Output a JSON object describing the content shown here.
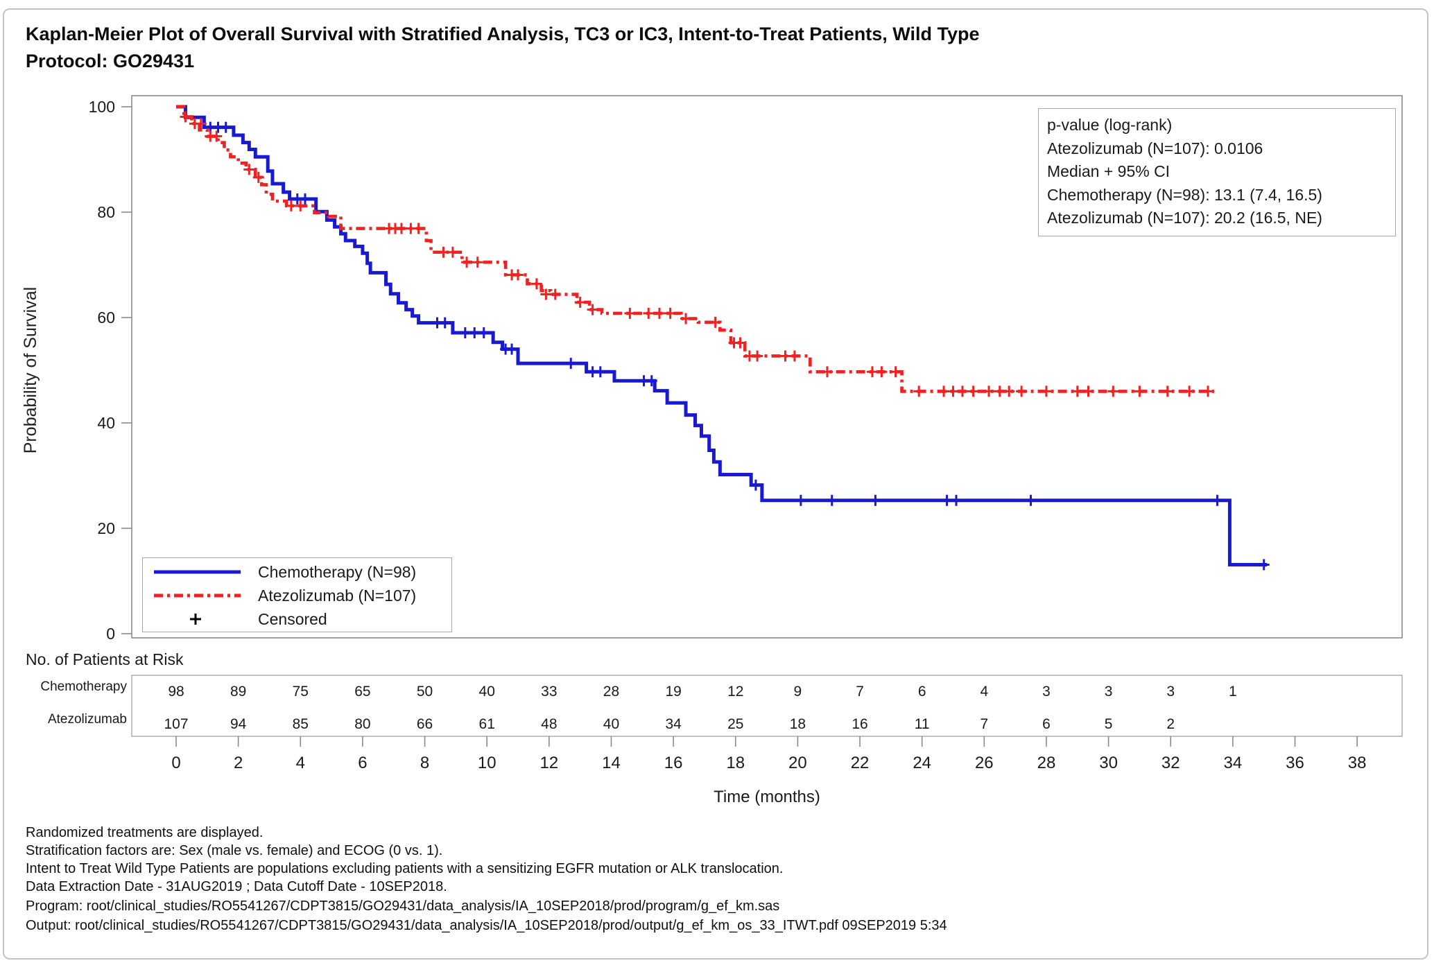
{
  "page": {
    "title_line1": "Kaplan-Meier Plot of Overall Survival with Stratified Analysis, TC3 or IC3, Intent-to-Treat Patients, Wild Type",
    "title_line2": "Protocol: GO29431"
  },
  "stats_box": {
    "l1": "p-value (log-rank)",
    "l2": "Atezolizumab (N=107): 0.0106",
    "l3": "Median + 95% CI",
    "l4": "Chemotherapy (N=98): 13.1 (7.4, 16.5)",
    "l5": "Atezolizumab (N=107): 20.2 (16.5, NE)"
  },
  "legend": {
    "items": [
      {
        "label": "Chemotherapy (N=98)",
        "sample": "solid-blue-line"
      },
      {
        "label": "Atezolizumab (N=107)",
        "sample": "dash-dot-red-line"
      },
      {
        "label": "Censored",
        "sample": "plus-mark",
        "symbol": "+"
      }
    ]
  },
  "at_risk": {
    "heading": "No. of Patients at Risk",
    "rows": [
      {
        "label": "Chemotherapy",
        "times": [
          0,
          2,
          4,
          6,
          8,
          10,
          12,
          14,
          16,
          18,
          20,
          22,
          24,
          26,
          28,
          30,
          32,
          34
        ],
        "counts": [
          98,
          89,
          75,
          65,
          50,
          40,
          33,
          28,
          19,
          12,
          9,
          7,
          6,
          4,
          3,
          3,
          3,
          1
        ]
      },
      {
        "label": "Atezolizumab",
        "times": [
          0,
          2,
          4,
          6,
          8,
          10,
          12,
          14,
          16,
          18,
          20,
          22,
          24,
          26,
          28,
          30,
          32
        ],
        "counts": [
          107,
          94,
          85,
          80,
          66,
          61,
          48,
          40,
          34,
          25,
          18,
          16,
          11,
          7,
          6,
          5,
          2
        ]
      }
    ]
  },
  "footnotes": {
    "l1": "Randomized treatments are displayed.",
    "l2": "Stratification factors are: Sex (male vs. female) and ECOG (0 vs. 1).",
    "l3": "Intent to Treat Wild Type Patients are populations excluding patients with a sensitizing EGFR mutation or ALK translocation.",
    "l4": "Data Extraction Date - 31AUG2019 ; Data Cutoff Date - 10SEP2018.",
    "l5": "Program: root/clinical_studies/RO5541267/CDPT3815/GO29431/data_analysis/IA_10SEP2018/prod/program/g_ef_km.sas",
    "l6": "Output: root/clinical_studies/RO5541267/CDPT3815/GO29431/data_analysis/IA_10SEP2018/prod/output/g_ef_km_os_33_ITWT.pdf 09SEP2019 5:34"
  },
  "colors": {
    "chemotherapy": "#1919d2",
    "atezolizumab": "#ee2222",
    "censored_legend": "#000000",
    "axis": "#8a8a8a",
    "box_border": "#a9a9a9",
    "text": "#1a1a1a"
  },
  "chart_data": {
    "type": "line",
    "variant": "kaplan-meier-step",
    "title": "Kaplan-Meier Plot of Overall Survival, TC3 or IC3, ITT Wild Type, GO29431",
    "xlabel": "Time (months)",
    "ylabel": "Probability of Survival",
    "xlim": [
      0,
      38
    ],
    "ylim": [
      0,
      100
    ],
    "xticks": [
      0,
      2,
      4,
      6,
      8,
      10,
      12,
      14,
      16,
      18,
      20,
      22,
      24,
      26,
      28,
      30,
      32,
      34,
      36,
      38
    ],
    "yticks": [
      0,
      20,
      40,
      60,
      80,
      100
    ],
    "grid": false,
    "legend_position": "inside-bottom-left",
    "series": [
      {
        "name": "Chemotherapy (N=98)",
        "color": "#1919d2",
        "line_style": "solid",
        "end_time": 35.1,
        "steps": [
          [
            0,
            100
          ],
          [
            0.3,
            98
          ],
          [
            0.9,
            96.1
          ],
          [
            1.85,
            94.6
          ],
          [
            2.15,
            93.2
          ],
          [
            2.35,
            91.9
          ],
          [
            2.55,
            90.5
          ],
          [
            2.95,
            87.8
          ],
          [
            3.1,
            85.4
          ],
          [
            3.45,
            83.8
          ],
          [
            3.65,
            82.5
          ],
          [
            4.5,
            80.1
          ],
          [
            4.85,
            78.5
          ],
          [
            5.1,
            77.2
          ],
          [
            5.3,
            75.9
          ],
          [
            5.45,
            74.6
          ],
          [
            5.75,
            73.5
          ],
          [
            6.0,
            72.2
          ],
          [
            6.15,
            70.3
          ],
          [
            6.25,
            68.5
          ],
          [
            6.75,
            66.3
          ],
          [
            6.9,
            64.5
          ],
          [
            7.15,
            62.8
          ],
          [
            7.4,
            61.5
          ],
          [
            7.6,
            60.3
          ],
          [
            7.8,
            59.0
          ],
          [
            8.9,
            57.1
          ],
          [
            10.2,
            55.3
          ],
          [
            10.5,
            54.0
          ],
          [
            11.0,
            51.3
          ],
          [
            13.2,
            49.7
          ],
          [
            14.1,
            48.0
          ],
          [
            15.4,
            46.1
          ],
          [
            15.8,
            43.8
          ],
          [
            16.4,
            41.5
          ],
          [
            16.7,
            39.5
          ],
          [
            16.9,
            37.5
          ],
          [
            17.15,
            34.8
          ],
          [
            17.3,
            32.6
          ],
          [
            17.5,
            30.2
          ],
          [
            18.5,
            28.2
          ],
          [
            18.85,
            25.3
          ],
          [
            33.9,
            13.1
          ]
        ],
        "censors": [
          [
            1.1,
            96.1
          ],
          [
            1.35,
            96.1
          ],
          [
            1.6,
            96.1
          ],
          [
            3.9,
            82.5
          ],
          [
            4.15,
            82.5
          ],
          [
            8.4,
            59.0
          ],
          [
            8.65,
            59.0
          ],
          [
            9.3,
            57.1
          ],
          [
            9.6,
            57.1
          ],
          [
            9.9,
            57.1
          ],
          [
            10.6,
            54.0
          ],
          [
            10.8,
            54.0
          ],
          [
            12.7,
            51.3
          ],
          [
            13.4,
            49.7
          ],
          [
            13.65,
            49.7
          ],
          [
            15.05,
            48.0
          ],
          [
            15.3,
            48.0
          ],
          [
            18.65,
            28.2
          ],
          [
            20.1,
            25.3
          ],
          [
            21.1,
            25.3
          ],
          [
            22.5,
            25.3
          ],
          [
            24.8,
            25.3
          ],
          [
            25.1,
            25.3
          ],
          [
            27.5,
            25.3
          ],
          [
            33.5,
            25.3
          ],
          [
            35.0,
            13.1
          ]
        ]
      },
      {
        "name": "Atezolizumab (N=107)",
        "color": "#ee2222",
        "line_style": "dash-dot",
        "end_time": 33.4,
        "steps": [
          [
            0,
            100
          ],
          [
            0.25,
            98.1
          ],
          [
            0.5,
            96.8
          ],
          [
            0.75,
            95.6
          ],
          [
            1.0,
            94.4
          ],
          [
            1.35,
            93.2
          ],
          [
            1.55,
            91.8
          ],
          [
            1.75,
            90.5
          ],
          [
            2.0,
            89.3
          ],
          [
            2.25,
            88.1
          ],
          [
            2.55,
            86.6
          ],
          [
            2.75,
            85.2
          ],
          [
            2.9,
            83.4
          ],
          [
            3.1,
            82.1
          ],
          [
            3.55,
            81.2
          ],
          [
            4.45,
            79.9
          ],
          [
            4.9,
            79.2
          ],
          [
            5.3,
            76.9
          ],
          [
            8.05,
            74.6
          ],
          [
            8.2,
            72.4
          ],
          [
            9.2,
            70.5
          ],
          [
            10.6,
            68.1
          ],
          [
            11.3,
            66.4
          ],
          [
            11.75,
            65.1
          ],
          [
            12.05,
            64.4
          ],
          [
            12.9,
            62.9
          ],
          [
            13.3,
            61.5
          ],
          [
            13.7,
            60.8
          ],
          [
            16.25,
            59.8
          ],
          [
            16.8,
            59.1
          ],
          [
            17.5,
            57.6
          ],
          [
            17.85,
            55.2
          ],
          [
            18.3,
            52.7
          ],
          [
            20.4,
            49.7
          ],
          [
            23.35,
            46.0
          ]
        ],
        "censors": [
          [
            0.3,
            98.1
          ],
          [
            0.6,
            96.8
          ],
          [
            0.8,
            96.8
          ],
          [
            1.1,
            94.4
          ],
          [
            1.3,
            94.4
          ],
          [
            2.35,
            88.1
          ],
          [
            2.65,
            86.6
          ],
          [
            3.7,
            81.2
          ],
          [
            4.0,
            81.2
          ],
          [
            6.85,
            76.9
          ],
          [
            7.05,
            76.9
          ],
          [
            7.25,
            76.9
          ],
          [
            7.55,
            76.9
          ],
          [
            7.8,
            76.9
          ],
          [
            8.6,
            72.4
          ],
          [
            8.9,
            72.4
          ],
          [
            9.35,
            70.5
          ],
          [
            9.7,
            70.5
          ],
          [
            10.8,
            68.1
          ],
          [
            11.0,
            68.1
          ],
          [
            11.6,
            66.4
          ],
          [
            11.9,
            64.4
          ],
          [
            12.2,
            64.4
          ],
          [
            13.0,
            62.9
          ],
          [
            13.4,
            61.5
          ],
          [
            14.6,
            60.8
          ],
          [
            15.2,
            60.8
          ],
          [
            15.55,
            60.8
          ],
          [
            15.9,
            60.8
          ],
          [
            16.4,
            59.8
          ],
          [
            17.35,
            59.1
          ],
          [
            17.95,
            55.2
          ],
          [
            18.15,
            55.2
          ],
          [
            18.45,
            52.7
          ],
          [
            18.7,
            52.7
          ],
          [
            19.6,
            52.7
          ],
          [
            19.9,
            52.7
          ],
          [
            20.95,
            49.7
          ],
          [
            22.4,
            49.7
          ],
          [
            22.7,
            49.7
          ],
          [
            23.15,
            49.7
          ],
          [
            23.9,
            46.0
          ],
          [
            24.7,
            46.0
          ],
          [
            25.0,
            46.0
          ],
          [
            25.3,
            46.0
          ],
          [
            25.65,
            46.0
          ],
          [
            26.15,
            46.0
          ],
          [
            26.5,
            46.0
          ],
          [
            26.8,
            46.0
          ],
          [
            27.2,
            46.0
          ],
          [
            28.0,
            46.0
          ],
          [
            29.0,
            46.0
          ],
          [
            29.35,
            46.0
          ],
          [
            30.15,
            46.0
          ],
          [
            31.0,
            46.0
          ],
          [
            31.9,
            46.0
          ],
          [
            32.6,
            46.0
          ],
          [
            33.2,
            46.0
          ]
        ]
      }
    ]
  }
}
